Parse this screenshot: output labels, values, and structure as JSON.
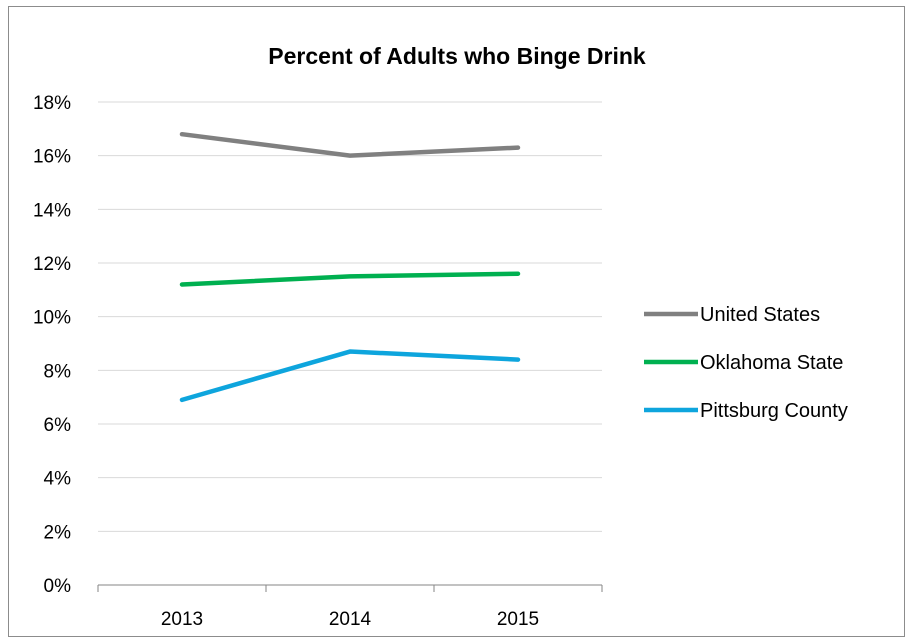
{
  "chart_data": {
    "type": "line",
    "title": "Percent of Adults who Binge Drink",
    "xlabel": "",
    "ylabel": "",
    "categories": [
      "2013",
      "2014",
      "2015"
    ],
    "ylim": [
      0,
      18
    ],
    "y_ticks": [
      "0%",
      "2%",
      "4%",
      "6%",
      "8%",
      "10%",
      "12%",
      "14%",
      "16%",
      "18%"
    ],
    "y_unit": "percent",
    "grid": true,
    "legend_position": "right",
    "series": [
      {
        "name": "United States",
        "color": "#808080",
        "values": [
          16.8,
          16.0,
          16.3
        ]
      },
      {
        "name": "Oklahoma State",
        "color": "#00b050",
        "values": [
          11.2,
          11.5,
          11.6
        ]
      },
      {
        "name": "Pittsburg County",
        "color": "#0ea5dd",
        "values": [
          6.9,
          8.7,
          8.4
        ]
      }
    ]
  }
}
